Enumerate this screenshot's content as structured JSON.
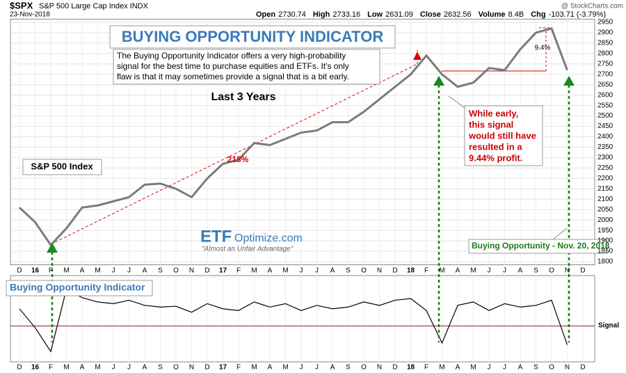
{
  "chart_data": {
    "type": "line",
    "header": {
      "symbol": "$SPX",
      "name": "S&P 500 Large Cap Index  INDX",
      "date": "23-Nov-2018",
      "copyright": "@ StockCharts.com",
      "quote": [
        "Open",
        "2730.74",
        "High",
        "2733.16",
        "Low",
        "2631.09",
        "Close",
        "2632.56",
        "Volume",
        "8.4B",
        "Chg",
        "-103.71 (-3.79%)"
      ]
    },
    "title": "BUYING OPPORTUNITY INDICATOR",
    "description": [
      "The Buying Opportunity Indicator offers a very high-probability",
      "signal for the best time to purchase equities and ETFs. It's only",
      "flaw is that it may sometimes provide a signal that is a bit early."
    ],
    "subtitle": "Last 3 Years",
    "series_label": "S&P 500 Index",
    "gain_label": "218%",
    "drop_label": "9.4%",
    "callout": [
      "While early,",
      "this signal",
      "would still have",
      "resulted in a",
      "9.44% profit."
    ],
    "signal_note": "Buying Opportunity - Nov. 20, 2018",
    "brand": {
      "bold": "ETF",
      "rest": "Optimize.com",
      "tagline": "\"Almost an Unfair Advantage\""
    },
    "categories": [
      "D",
      "16",
      "F",
      "M",
      "A",
      "M",
      "J",
      "J",
      "A",
      "S",
      "O",
      "N",
      "D",
      "17",
      "F",
      "M",
      "A",
      "M",
      "J",
      "J",
      "A",
      "S",
      "O",
      "N",
      "D",
      "18",
      "F",
      "M",
      "A",
      "M",
      "J",
      "J",
      "A",
      "S",
      "O",
      "N",
      "D"
    ],
    "series": [
      {
        "name": "S&P 500",
        "color": "#7a7a7a",
        "values": [
          2060,
          1990,
          1880,
          1960,
          2060,
          2070,
          2090,
          2110,
          2170,
          2175,
          2150,
          2110,
          2200,
          2270,
          2290,
          2370,
          2360,
          2390,
          2420,
          2430,
          2470,
          2470,
          2520,
          2580,
          2640,
          2700,
          2790,
          2700,
          2640,
          2660,
          2730,
          2720,
          2820,
          2900,
          2920,
          2720,
          null
        ]
      }
    ],
    "ylim": [
      1785,
      2965
    ],
    "yticks": [
      1800,
      1850,
      1900,
      1950,
      2000,
      2050,
      2100,
      2150,
      2200,
      2250,
      2300,
      2350,
      2400,
      2450,
      2500,
      2550,
      2600,
      2650,
      2700,
      2750,
      2800,
      2850,
      2900,
      2950
    ],
    "indicator": {
      "name": "Buying Opportunity Indicator",
      "signal_name": "Signal",
      "signal": 42,
      "ylim": [
        0,
        100
      ],
      "color": "#000000",
      "values": [
        62,
        40,
        12,
        85,
        75,
        70,
        68,
        72,
        66,
        64,
        65,
        58,
        68,
        62,
        60,
        70,
        64,
        68,
        60,
        66,
        62,
        64,
        70,
        66,
        72,
        74,
        60,
        22,
        66,
        70,
        60,
        68,
        64,
        66,
        72,
        20,
        null
      ]
    }
  }
}
